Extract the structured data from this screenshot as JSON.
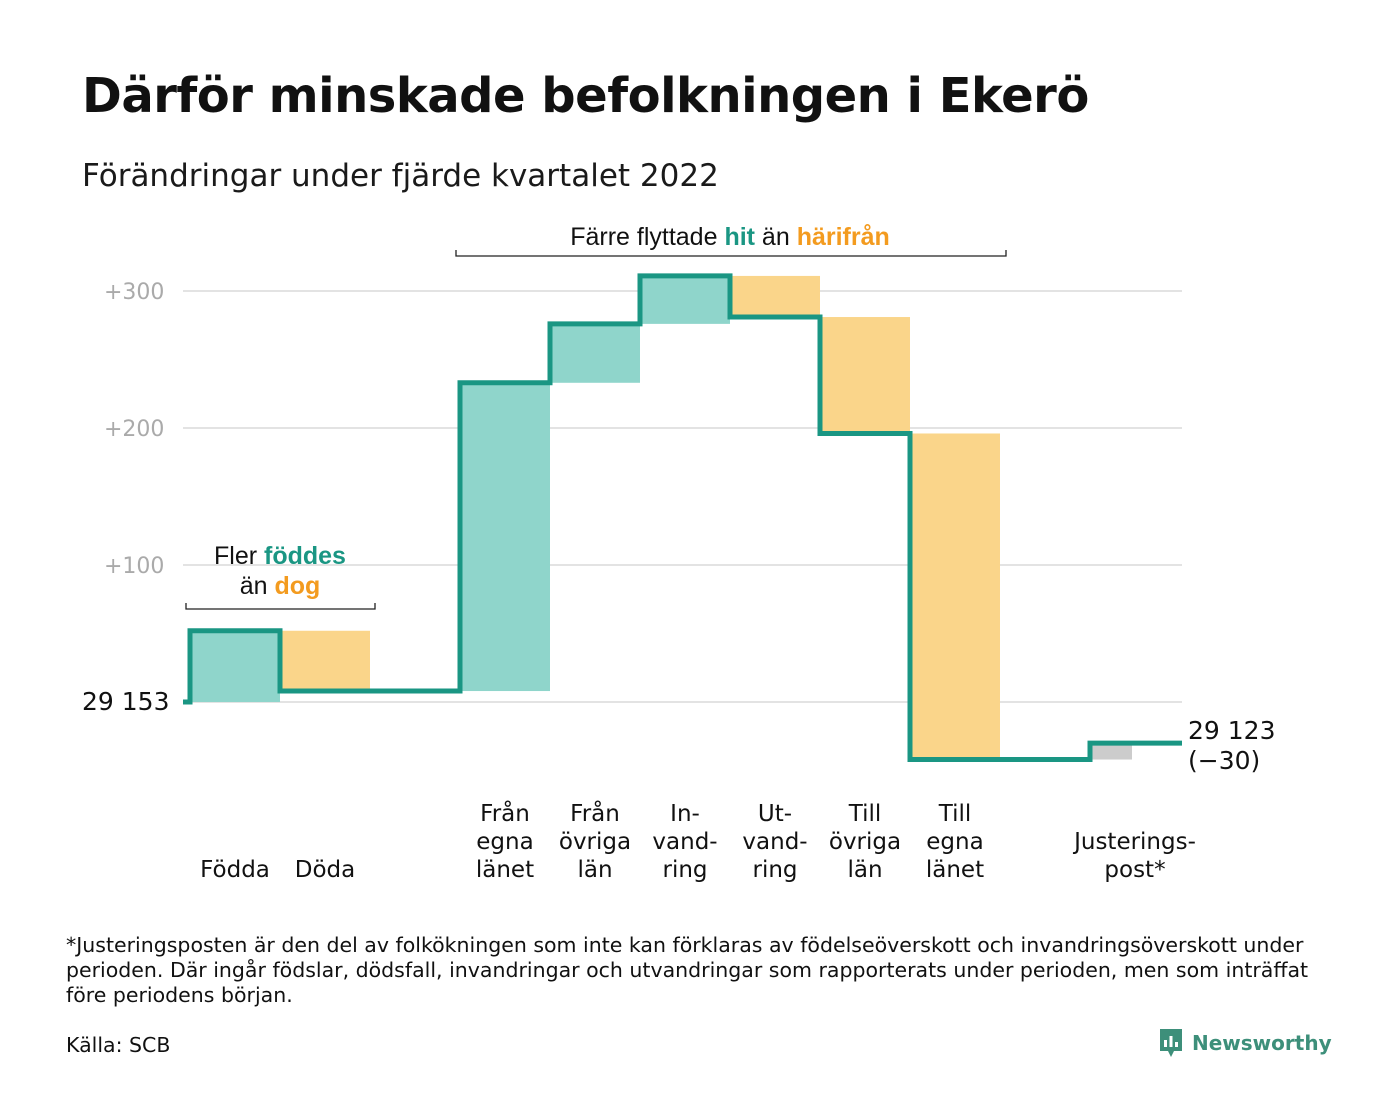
{
  "title": "Därför minskade befolkningen i Ekerö",
  "subtitle": "Förändringar under fjärde kvartalet 2022",
  "footnote": "*Justeringsposten är den del av folkökningen som inte kan förklaras av födelseöverskott och invandringsöverskott under perioden. Där ingår födslar, dödsfall, invandringar och utvandringar som rapporterats under perioden, men som inträffat före periodens början.",
  "source": "Källa: SCB",
  "brand": "Newsworthy",
  "colors": {
    "increase": "#8fd5cb",
    "decrease": "#fad58a",
    "adjustment": "#cccccc",
    "line": "#1a9683",
    "teal_text": "#1a9683",
    "orange_text": "#f39b1f",
    "grid": "#e3e3e3"
  },
  "chart_data": {
    "type": "waterfall",
    "start_label": "29 153",
    "start_value": 29153,
    "end_label_line1": "29 123",
    "end_label_line2": "(−30)",
    "end_value": 29123,
    "net_change": -30,
    "ylim": [
      -45,
      310
    ],
    "yticks": [
      {
        "value": 100,
        "label": "+100"
      },
      {
        "value": 200,
        "label": "+200"
      },
      {
        "value": 300,
        "label": "+300"
      }
    ],
    "steps": [
      {
        "lines": [
          "Födda"
        ],
        "kind": "increase",
        "delta": 52,
        "slot": 0
      },
      {
        "lines": [
          "Döda"
        ],
        "kind": "decrease",
        "delta": -44,
        "slot": 1
      },
      {
        "lines": [
          "Från",
          "egna",
          "länet"
        ],
        "kind": "increase",
        "delta": 225,
        "slot": 3
      },
      {
        "lines": [
          "Från",
          "övriga",
          "län"
        ],
        "kind": "increase",
        "delta": 43,
        "slot": 4
      },
      {
        "lines": [
          "In-",
          "vand-",
          "ring"
        ],
        "kind": "increase",
        "delta": 35,
        "slot": 5
      },
      {
        "lines": [
          "Ut-",
          "vand-",
          "ring"
        ],
        "kind": "decrease",
        "delta": -30,
        "slot": 6
      },
      {
        "lines": [
          "Till",
          "övriga",
          "län"
        ],
        "kind": "decrease",
        "delta": -85,
        "slot": 7
      },
      {
        "lines": [
          "Till",
          "egna",
          "länet"
        ],
        "kind": "decrease",
        "delta": -238,
        "slot": 8
      },
      {
        "lines": [
          "Justerings-",
          "post*"
        ],
        "kind": "adjustment",
        "delta": 12,
        "slot": 10
      }
    ],
    "annotations": {
      "births": {
        "pre": "Fler ",
        "highlight1": "föddes",
        "mid": "än ",
        "highlight2": "dog"
      },
      "migration": {
        "pre": "Färre flyttade ",
        "highlight1": "hit",
        "mid": " än ",
        "highlight2": "härifrån"
      }
    }
  }
}
